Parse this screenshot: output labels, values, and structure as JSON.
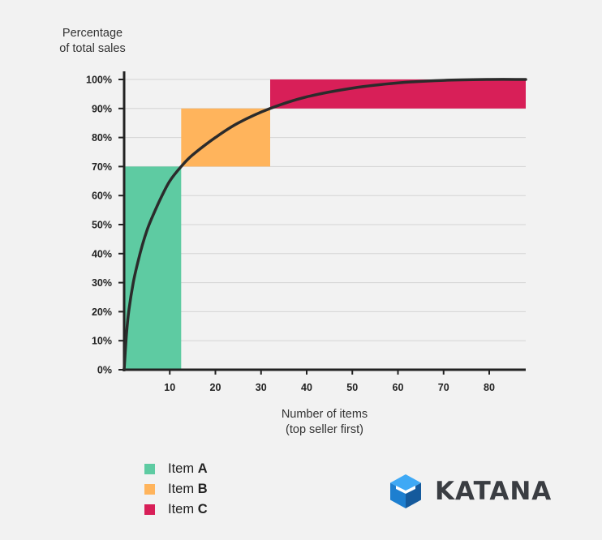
{
  "chart_data": {
    "type": "area",
    "ylabel_lines": [
      "Percentage",
      "of total sales"
    ],
    "xlabel_lines": [
      "Number of items",
      "(top seller first)"
    ],
    "y_ticks": [
      "0%",
      "10%",
      "20%",
      "30%",
      "40%",
      "50%",
      "60%",
      "70%",
      "80%",
      "90%",
      "100%"
    ],
    "x_ticks": [
      "10",
      "20",
      "30",
      "40",
      "50",
      "60",
      "70",
      "80"
    ],
    "xlim": [
      0,
      88
    ],
    "ylim": [
      0,
      100
    ],
    "grid": true,
    "regions": [
      {
        "name_prefix": "Item",
        "name_key": "A",
        "x": [
          0,
          12.5
        ],
        "y": [
          0,
          70
        ],
        "color": "#5ecba2"
      },
      {
        "name_prefix": "Item",
        "name_key": "B",
        "x": [
          12.5,
          32
        ],
        "y": [
          70,
          90
        ],
        "color": "#ffb45c"
      },
      {
        "name_prefix": "Item",
        "name_key": "C",
        "x": [
          32,
          88
        ],
        "y": [
          90,
          100
        ],
        "color": "#d81f58"
      }
    ],
    "curve": {
      "color": "#2b2b2b",
      "x": [
        0,
        0.5,
        1,
        2,
        3,
        4,
        5,
        6,
        8,
        10,
        12.5,
        15,
        20,
        25,
        32,
        40,
        50,
        60,
        70,
        80,
        88
      ],
      "y": [
        0,
        12,
        20,
        30,
        37,
        43,
        48,
        52,
        59,
        65,
        70,
        74,
        80,
        85,
        90,
        94,
        97,
        98.8,
        99.7,
        100,
        100
      ]
    }
  },
  "brand": {
    "name": "KATANA",
    "colors": {
      "light": "#3fa9f5",
      "mid": "#1d7fd0",
      "dark": "#155a9c"
    }
  }
}
